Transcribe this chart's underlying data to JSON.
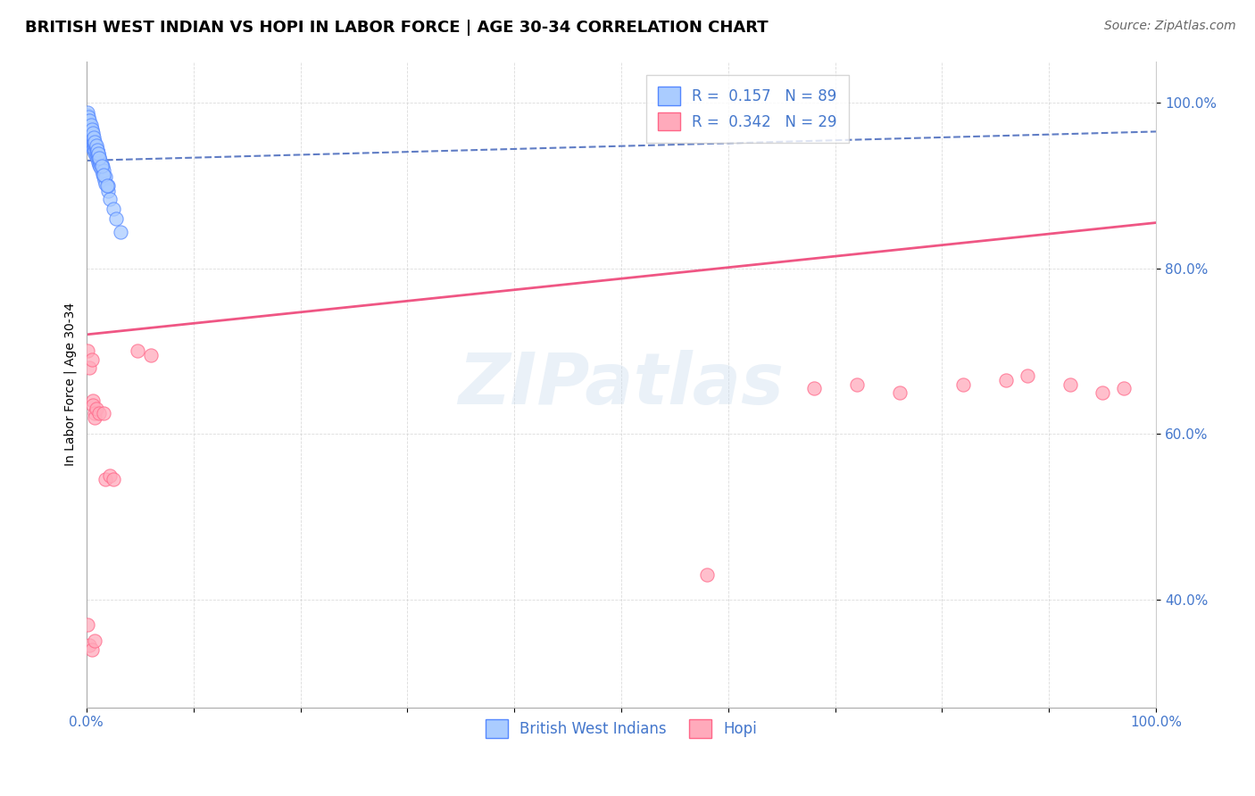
{
  "title": "BRITISH WEST INDIAN VS HOPI IN LABOR FORCE | AGE 30-34 CORRELATION CHART",
  "source": "Source: ZipAtlas.com",
  "ylabel": "In Labor Force | Age 30-34",
  "watermark": "ZIPatlas",
  "legend_blue_r": "0.157",
  "legend_blue_n": "89",
  "legend_pink_r": "0.342",
  "legend_pink_n": "29",
  "blue_color": "#5588ff",
  "blue_fill": "#aaccff",
  "pink_color": "#ff6688",
  "pink_fill": "#ffaabb",
  "blue_line_color": "#4466bb",
  "pink_line_color": "#ee4477",
  "ytick_color": "#4477cc",
  "grid_color": "#cccccc",
  "background_color": "#ffffff",
  "blue_x": [
    0.001,
    0.001,
    0.001,
    0.002,
    0.002,
    0.002,
    0.002,
    0.003,
    0.003,
    0.003,
    0.003,
    0.003,
    0.004,
    0.004,
    0.004,
    0.004,
    0.005,
    0.005,
    0.005,
    0.005,
    0.006,
    0.006,
    0.006,
    0.007,
    0.007,
    0.007,
    0.008,
    0.008,
    0.008,
    0.009,
    0.009,
    0.01,
    0.01,
    0.01,
    0.011,
    0.011,
    0.012,
    0.012,
    0.013,
    0.013,
    0.014,
    0.015,
    0.016,
    0.017,
    0.018,
    0.02,
    0.022,
    0.025,
    0.028,
    0.032,
    0.001,
    0.002,
    0.002,
    0.003,
    0.003,
    0.004,
    0.004,
    0.005,
    0.005,
    0.006,
    0.006,
    0.007,
    0.007,
    0.008,
    0.009,
    0.01,
    0.011,
    0.012,
    0.013,
    0.014,
    0.015,
    0.016,
    0.018,
    0.02,
    0.001,
    0.002,
    0.003,
    0.004,
    0.005,
    0.006,
    0.007,
    0.008,
    0.009,
    0.01,
    0.011,
    0.012,
    0.014,
    0.016,
    0.019
  ],
  "blue_y": [
    0.96,
    0.965,
    0.97,
    0.958,
    0.962,
    0.968,
    0.972,
    0.955,
    0.96,
    0.965,
    0.97,
    0.975,
    0.952,
    0.957,
    0.962,
    0.967,
    0.948,
    0.953,
    0.958,
    0.963,
    0.945,
    0.95,
    0.955,
    0.942,
    0.947,
    0.952,
    0.938,
    0.943,
    0.948,
    0.935,
    0.94,
    0.932,
    0.937,
    0.942,
    0.928,
    0.933,
    0.925,
    0.93,
    0.922,
    0.927,
    0.918,
    0.914,
    0.91,
    0.906,
    0.902,
    0.893,
    0.884,
    0.872,
    0.86,
    0.844,
    0.985,
    0.98,
    0.978,
    0.975,
    0.973,
    0.97,
    0.968,
    0.965,
    0.963,
    0.96,
    0.958,
    0.955,
    0.953,
    0.95,
    0.946,
    0.942,
    0.938,
    0.934,
    0.93,
    0.926,
    0.922,
    0.918,
    0.91,
    0.9,
    0.988,
    0.983,
    0.978,
    0.973,
    0.968,
    0.963,
    0.958,
    0.953,
    0.948,
    0.943,
    0.938,
    0.933,
    0.923,
    0.913,
    0.9
  ],
  "pink_x": [
    0.001,
    0.003,
    0.005,
    0.006,
    0.006,
    0.008,
    0.008,
    0.009,
    0.012,
    0.016,
    0.018,
    0.022,
    0.025,
    0.048,
    0.06,
    0.001,
    0.003,
    0.005,
    0.008,
    0.58,
    0.68,
    0.72,
    0.76,
    0.82,
    0.86,
    0.88,
    0.92,
    0.95,
    0.97
  ],
  "pink_y": [
    0.7,
    0.68,
    0.69,
    0.64,
    0.635,
    0.625,
    0.62,
    0.63,
    0.625,
    0.625,
    0.545,
    0.55,
    0.545,
    0.7,
    0.695,
    0.37,
    0.345,
    0.34,
    0.35,
    0.43,
    0.655,
    0.66,
    0.65,
    0.66,
    0.665,
    0.67,
    0.66,
    0.65,
    0.655
  ],
  "xlim": [
    0.0,
    1.0
  ],
  "ylim": [
    0.27,
    1.05
  ],
  "ytick_labels": [
    "40.0%",
    "60.0%",
    "80.0%",
    "100.0%"
  ],
  "ytick_values": [
    0.4,
    0.6,
    0.8,
    1.0
  ],
  "title_fontsize": 13,
  "axis_label_fontsize": 10,
  "tick_fontsize": 11,
  "legend_fontsize": 12,
  "source_fontsize": 10
}
